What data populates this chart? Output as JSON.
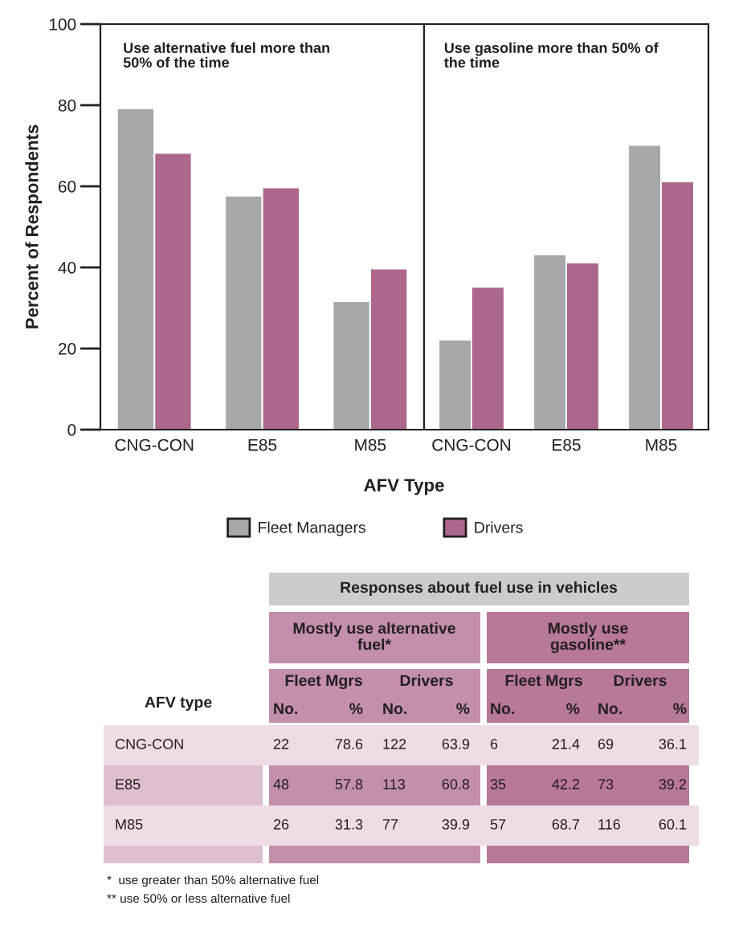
{
  "chart_data": [
    {
      "type": "bar",
      "ylabel": "Percent of Respondents",
      "xlabel": "AFV Type",
      "categories": [
        "CNG-CON",
        "E85",
        "M85"
      ],
      "series": [
        {
          "name": "Fleet Managers",
          "color": "#a7a8ac",
          "values": [
            79,
            57.5,
            31.5
          ]
        },
        {
          "name": "Drivers",
          "color": "#ad668c",
          "values": [
            68,
            59.5,
            39.5
          ]
        }
      ],
      "ylim": [
        0,
        100
      ],
      "yticks": [
        0,
        20,
        40,
        60,
        80,
        100
      ],
      "legend": "bottom",
      "annotations": [
        "Use alternative fuel more than 50% of the time"
      ]
    },
    {
      "type": "bar",
      "categories": [
        "CNG-CON",
        "E85",
        "M85"
      ],
      "series": [
        {
          "color": "#a7a8ac",
          "values": [
            22,
            43,
            70
          ]
        },
        {
          "color": "#ad668c",
          "values": [
            35,
            41,
            61
          ]
        }
      ],
      "ylim": [
        0,
        100
      ],
      "yticks": [
        0,
        20,
        40,
        60,
        80,
        100
      ],
      "tick_labels": "x",
      "annotations": [
        "Use gasoline more than 50% of the time"
      ]
    },
    {
      "type": "other",
      "annotations": [
        "Responses about fuel use in vehicles",
        "Mostly use alternative fuel*",
        "Mostly use gasoline**",
        "AFV type",
        "Fleet Mgrs",
        "Drivers",
        "Fleet Mgrs",
        "Drivers",
        "No.",
        "%",
        "No.",
        "%",
        "No.",
        "%",
        "No.",
        "%",
        "CNG-CON",
        "22",
        "78.6",
        "122",
        "63.9",
        "6",
        "21.4",
        "69",
        "36.1",
        "E85",
        "48",
        "57.8",
        "113",
        "60.8",
        "35",
        "42.2",
        "73",
        "39.2",
        "M85",
        "26",
        "31.3",
        "77",
        "39.9",
        "57",
        "68.7",
        "116",
        "60.1",
        "*  use greater than 50% alternative fuel",
        "** use 50% or less alternative fuel"
      ]
    }
  ]
}
